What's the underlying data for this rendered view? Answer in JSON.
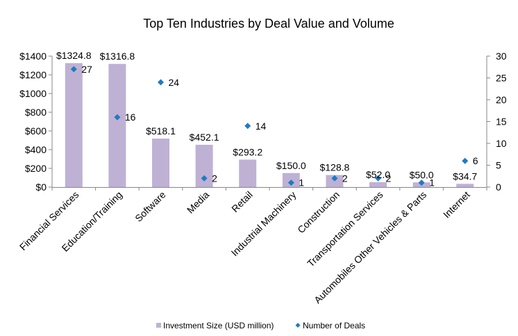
{
  "chart_data": {
    "type": "bar",
    "title": "Top Ten Industries by Deal Value and Volume",
    "xlabel": "",
    "ylabel": "",
    "y2label": "",
    "categories": [
      "Financial Services",
      "Education/Training",
      "Software",
      "Media",
      "Retail",
      "Industrial Machinery",
      "Construction",
      "Transportation Services",
      "Automobiles Other Vehicles & Parts",
      "Internet"
    ],
    "series": [
      {
        "name": "Investment Size (USD million)",
        "type": "bar",
        "axis": "left",
        "color": "#BFB1D4",
        "values": [
          1324.8,
          1316.8,
          518.1,
          452.1,
          293.2,
          150.0,
          128.8,
          52.0,
          50.0,
          34.7
        ],
        "labels": [
          "$1324.8",
          "$1316.8",
          "$518.1",
          "$452.1",
          "$293.2",
          "$150.0",
          "$128.8",
          "$52.0",
          "$50.0",
          "$34.7"
        ]
      },
      {
        "name": "Number of Deals",
        "type": "scatter",
        "marker": "diamond",
        "axis": "right",
        "color": "#1F7BC1",
        "values": [
          27,
          16,
          24,
          2,
          14,
          1,
          2,
          2,
          1,
          6
        ],
        "labels": [
          "27",
          "16",
          "24",
          "2",
          "14",
          "1",
          "2",
          "2",
          "1",
          "6"
        ]
      }
    ],
    "ylim": [
      0,
      1400
    ],
    "y_ticks": [
      0,
      200,
      400,
      600,
      800,
      1000,
      1200,
      1400
    ],
    "y_tick_labels": [
      "$0",
      "$200",
      "$400",
      "$600",
      "$800",
      "$1000",
      "$1200",
      "$1400"
    ],
    "y2lim": [
      0,
      30
    ],
    "y2_ticks": [
      0,
      5,
      10,
      15,
      20,
      25,
      30
    ],
    "y2_tick_labels": [
      "0",
      "5",
      "10",
      "15",
      "20",
      "25",
      "30"
    ],
    "grid": false,
    "legend_position": "bottom",
    "axis_color": "#878787"
  }
}
